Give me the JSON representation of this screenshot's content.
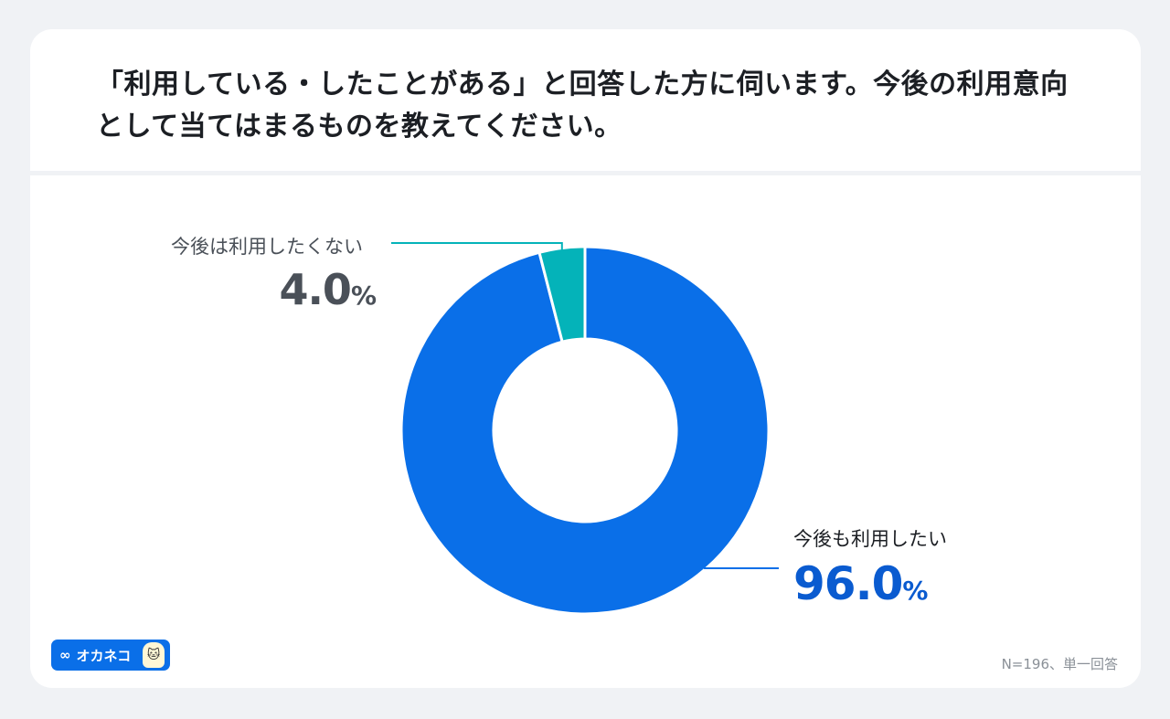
{
  "question": "「利用している・したことがある」と回答した方に伺います。今後の利用意向として当てはまるものを教えてください。",
  "chart_data": {
    "type": "pie",
    "title": "「利用している・したことがある」と回答した方に伺います。今後の利用意向として当てはまるものを教えてください。",
    "slices": [
      {
        "label": "今後も利用したい",
        "value": 96.0,
        "display": "96.0",
        "color": "#0a6fe8"
      },
      {
        "label": "今後は利用したくない",
        "value": 4.0,
        "display": "4.0",
        "color": "#04b3b9"
      }
    ],
    "unit": "%",
    "donut": true
  },
  "note": "N=196、単一回答",
  "logo": {
    "text": "オカネコ",
    "mark": "∞",
    "icon": "cat-icon"
  }
}
